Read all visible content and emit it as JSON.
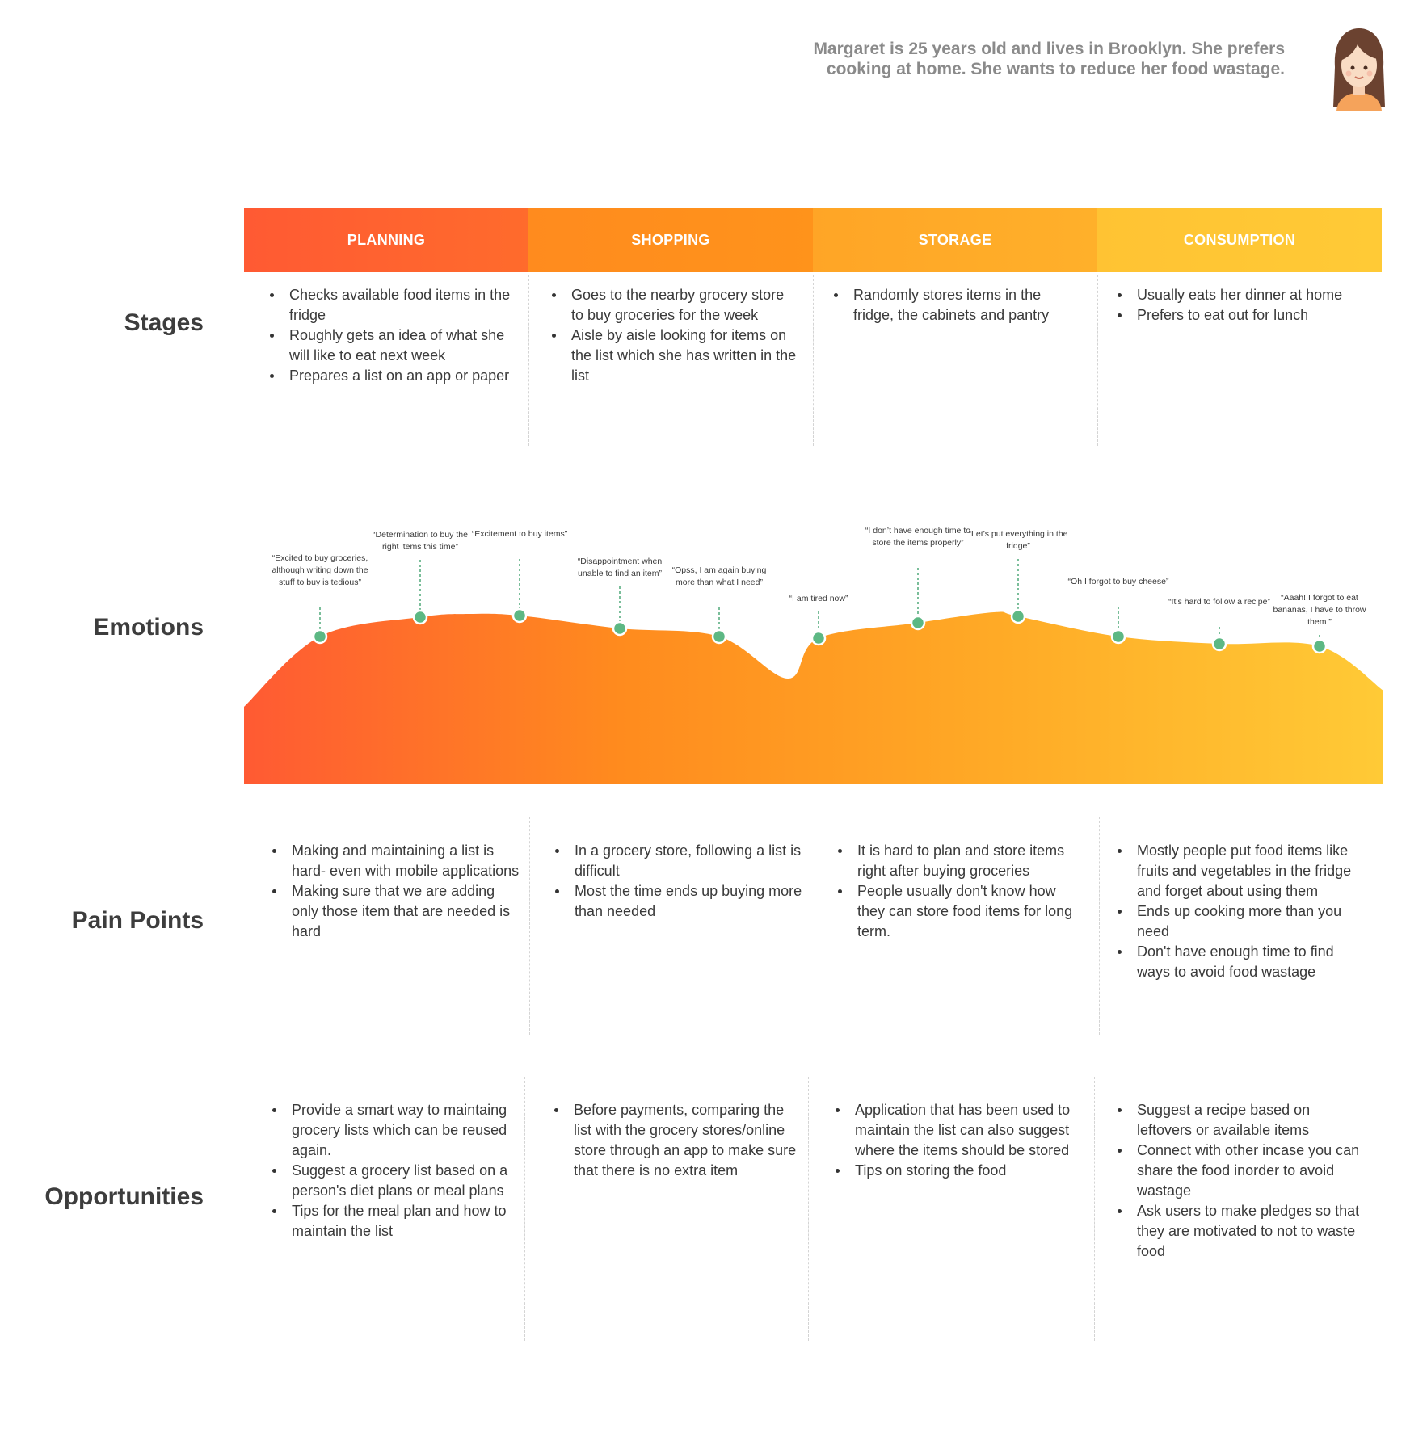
{
  "persona": {
    "description": "Margaret is 25 years old and lives in Brooklyn. She prefers cooking at home. She wants to reduce her food wastage.",
    "avatar_icon": "woman-avatar-icon"
  },
  "row_labels": {
    "stages": "Stages",
    "emotions": "Emotions",
    "pain_points": "Pain Points",
    "opportunities": "Opportunities"
  },
  "colors": {
    "planning": "#FF5F31",
    "shopping": "#FF8A1E",
    "storage": "#FFA826",
    "consumption": "#FFC935",
    "emotion_marker": "#5DB884",
    "emotion_marker_line": "#4FA879"
  },
  "stages": [
    {
      "name": "PLANNING",
      "items": [
        "Checks available food items in the fridge",
        "Roughly gets an idea of what she will like to eat next week",
        "Prepares a list on an app or paper"
      ]
    },
    {
      "name": "SHOPPING",
      "items": [
        "Goes to the nearby grocery store to buy groceries for the week",
        "Aisle by aisle looking for items on the list which she has written in the list"
      ]
    },
    {
      "name": "STORAGE",
      "items": [
        "Randomly stores items in the fridge, the cabinets and pantry"
      ]
    },
    {
      "name": "CONSUMPTION",
      "items": [
        "Usually eats her dinner at home",
        "Prefers to eat out for lunch"
      ]
    }
  ],
  "emotions": [
    {
      "quote": "“Excited to buy groceries, although writing down the stuff to buy is tedious”",
      "level": 0.72
    },
    {
      "quote": "“Determination to buy the right items this time”",
      "level": 0.96
    },
    {
      "quote": "“Excitement to buy items”",
      "level": 0.98
    },
    {
      "quote": "“Disappointment when unable to find an item”",
      "level": 0.82
    },
    {
      "quote": "“Opss, I am again buying more than what I need”",
      "level": 0.72
    },
    {
      "quote": "“I am tired now”",
      "level": 0.7
    },
    {
      "quote": "“I don’t have enough time to store the items properly”",
      "level": 0.89
    },
    {
      "quote": "“Let’s put everything in the fridge”",
      "level": 0.97
    },
    {
      "quote": "“Oh I forgot to buy cheese”",
      "level": 0.72
    },
    {
      "quote": "“It’s hard to follow a recipe”",
      "level": 0.63
    },
    {
      "quote": "“Aaah! I forgot to eat bananas, I have to throw them ”",
      "level": 0.6
    }
  ],
  "pain_points": [
    [
      "Making and maintaining a list is hard- even with mobile applications",
      "Making sure that we are adding only those item that are needed is hard"
    ],
    [
      "In a grocery store, following a list is difficult",
      "Most the time ends up buying more than needed"
    ],
    [
      "It is hard to plan and store items right after buying groceries",
      "People usually don't know how they can store food items for long term."
    ],
    [
      "Mostly people put food items like fruits and vegetables in the fridge and forget about using them",
      "Ends up cooking more than you need",
      "Don't have enough time to find ways to avoid food wastage"
    ]
  ],
  "opportunities": [
    [
      "Provide a smart way to maintaing grocery lists which can be reused again.",
      "Suggest a grocery list based on a person's diet plans or meal plans",
      "Tips for the meal plan and how to maintain the list"
    ],
    [
      "Before payments, comparing the list with the grocery stores/online store through an app to make sure that there is no extra item"
    ],
    [
      "Application that has been used to maintain the list can also suggest where the items should be stored",
      "Tips on storing the food"
    ],
    [
      "Suggest a recipe based on leftovers or available items",
      "Connect with other incase you can share the food inorder to avoid wastage",
      "Ask users to make pledges  so that they are motivated to not to waste food"
    ]
  ]
}
